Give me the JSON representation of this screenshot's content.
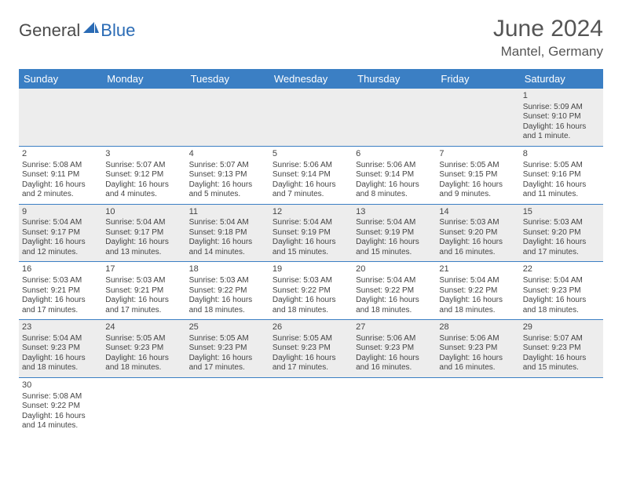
{
  "brand": {
    "part1": "General",
    "part2": "Blue"
  },
  "colors": {
    "header_bg": "#3b7fc4",
    "header_text": "#ffffff",
    "row_alt_bg": "#ededed",
    "row_bg": "#ffffff",
    "border": "#3b7fc4",
    "title_color": "#555555",
    "text_color": "#444444"
  },
  "title": "June 2024",
  "location": "Mantel, Germany",
  "weekdays": [
    "Sunday",
    "Monday",
    "Tuesday",
    "Wednesday",
    "Thursday",
    "Friday",
    "Saturday"
  ],
  "weeks": [
    [
      null,
      null,
      null,
      null,
      null,
      null,
      {
        "d": "1",
        "r": "Sunrise: 5:09 AM",
        "s": "Sunset: 9:10 PM",
        "l1": "Daylight: 16 hours",
        "l2": "and 1 minute."
      }
    ],
    [
      {
        "d": "2",
        "r": "Sunrise: 5:08 AM",
        "s": "Sunset: 9:11 PM",
        "l1": "Daylight: 16 hours",
        "l2": "and 2 minutes."
      },
      {
        "d": "3",
        "r": "Sunrise: 5:07 AM",
        "s": "Sunset: 9:12 PM",
        "l1": "Daylight: 16 hours",
        "l2": "and 4 minutes."
      },
      {
        "d": "4",
        "r": "Sunrise: 5:07 AM",
        "s": "Sunset: 9:13 PM",
        "l1": "Daylight: 16 hours",
        "l2": "and 5 minutes."
      },
      {
        "d": "5",
        "r": "Sunrise: 5:06 AM",
        "s": "Sunset: 9:14 PM",
        "l1": "Daylight: 16 hours",
        "l2": "and 7 minutes."
      },
      {
        "d": "6",
        "r": "Sunrise: 5:06 AM",
        "s": "Sunset: 9:14 PM",
        "l1": "Daylight: 16 hours",
        "l2": "and 8 minutes."
      },
      {
        "d": "7",
        "r": "Sunrise: 5:05 AM",
        "s": "Sunset: 9:15 PM",
        "l1": "Daylight: 16 hours",
        "l2": "and 9 minutes."
      },
      {
        "d": "8",
        "r": "Sunrise: 5:05 AM",
        "s": "Sunset: 9:16 PM",
        "l1": "Daylight: 16 hours",
        "l2": "and 11 minutes."
      }
    ],
    [
      {
        "d": "9",
        "r": "Sunrise: 5:04 AM",
        "s": "Sunset: 9:17 PM",
        "l1": "Daylight: 16 hours",
        "l2": "and 12 minutes."
      },
      {
        "d": "10",
        "r": "Sunrise: 5:04 AM",
        "s": "Sunset: 9:17 PM",
        "l1": "Daylight: 16 hours",
        "l2": "and 13 minutes."
      },
      {
        "d": "11",
        "r": "Sunrise: 5:04 AM",
        "s": "Sunset: 9:18 PM",
        "l1": "Daylight: 16 hours",
        "l2": "and 14 minutes."
      },
      {
        "d": "12",
        "r": "Sunrise: 5:04 AM",
        "s": "Sunset: 9:19 PM",
        "l1": "Daylight: 16 hours",
        "l2": "and 15 minutes."
      },
      {
        "d": "13",
        "r": "Sunrise: 5:04 AM",
        "s": "Sunset: 9:19 PM",
        "l1": "Daylight: 16 hours",
        "l2": "and 15 minutes."
      },
      {
        "d": "14",
        "r": "Sunrise: 5:03 AM",
        "s": "Sunset: 9:20 PM",
        "l1": "Daylight: 16 hours",
        "l2": "and 16 minutes."
      },
      {
        "d": "15",
        "r": "Sunrise: 5:03 AM",
        "s": "Sunset: 9:20 PM",
        "l1": "Daylight: 16 hours",
        "l2": "and 17 minutes."
      }
    ],
    [
      {
        "d": "16",
        "r": "Sunrise: 5:03 AM",
        "s": "Sunset: 9:21 PM",
        "l1": "Daylight: 16 hours",
        "l2": "and 17 minutes."
      },
      {
        "d": "17",
        "r": "Sunrise: 5:03 AM",
        "s": "Sunset: 9:21 PM",
        "l1": "Daylight: 16 hours",
        "l2": "and 17 minutes."
      },
      {
        "d": "18",
        "r": "Sunrise: 5:03 AM",
        "s": "Sunset: 9:22 PM",
        "l1": "Daylight: 16 hours",
        "l2": "and 18 minutes."
      },
      {
        "d": "19",
        "r": "Sunrise: 5:03 AM",
        "s": "Sunset: 9:22 PM",
        "l1": "Daylight: 16 hours",
        "l2": "and 18 minutes."
      },
      {
        "d": "20",
        "r": "Sunrise: 5:04 AM",
        "s": "Sunset: 9:22 PM",
        "l1": "Daylight: 16 hours",
        "l2": "and 18 minutes."
      },
      {
        "d": "21",
        "r": "Sunrise: 5:04 AM",
        "s": "Sunset: 9:22 PM",
        "l1": "Daylight: 16 hours",
        "l2": "and 18 minutes."
      },
      {
        "d": "22",
        "r": "Sunrise: 5:04 AM",
        "s": "Sunset: 9:23 PM",
        "l1": "Daylight: 16 hours",
        "l2": "and 18 minutes."
      }
    ],
    [
      {
        "d": "23",
        "r": "Sunrise: 5:04 AM",
        "s": "Sunset: 9:23 PM",
        "l1": "Daylight: 16 hours",
        "l2": "and 18 minutes."
      },
      {
        "d": "24",
        "r": "Sunrise: 5:05 AM",
        "s": "Sunset: 9:23 PM",
        "l1": "Daylight: 16 hours",
        "l2": "and 18 minutes."
      },
      {
        "d": "25",
        "r": "Sunrise: 5:05 AM",
        "s": "Sunset: 9:23 PM",
        "l1": "Daylight: 16 hours",
        "l2": "and 17 minutes."
      },
      {
        "d": "26",
        "r": "Sunrise: 5:05 AM",
        "s": "Sunset: 9:23 PM",
        "l1": "Daylight: 16 hours",
        "l2": "and 17 minutes."
      },
      {
        "d": "27",
        "r": "Sunrise: 5:06 AM",
        "s": "Sunset: 9:23 PM",
        "l1": "Daylight: 16 hours",
        "l2": "and 16 minutes."
      },
      {
        "d": "28",
        "r": "Sunrise: 5:06 AM",
        "s": "Sunset: 9:23 PM",
        "l1": "Daylight: 16 hours",
        "l2": "and 16 minutes."
      },
      {
        "d": "29",
        "r": "Sunrise: 5:07 AM",
        "s": "Sunset: 9:23 PM",
        "l1": "Daylight: 16 hours",
        "l2": "and 15 minutes."
      }
    ],
    [
      {
        "d": "30",
        "r": "Sunrise: 5:08 AM",
        "s": "Sunset: 9:22 PM",
        "l1": "Daylight: 16 hours",
        "l2": "and 14 minutes."
      },
      null,
      null,
      null,
      null,
      null,
      null
    ]
  ]
}
